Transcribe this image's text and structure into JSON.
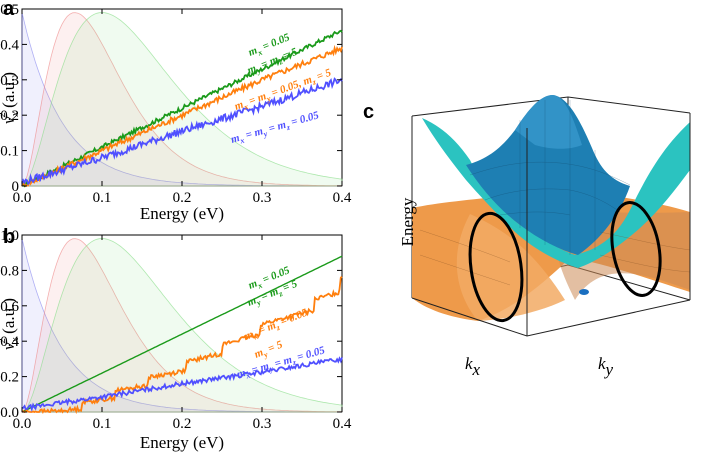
{
  "colors": {
    "green": "#1a9a1a",
    "orange": "#ff7f0e",
    "blue": "#5050ff",
    "bg_blue": "#8888ee",
    "bg_red": "#ee8888",
    "bg_green": "#88dd88",
    "surface_top": "#1e7fb3",
    "surface_top_edge": "#2ad2c4",
    "surface_bottom": "#ee9a4a"
  },
  "chart_data": [
    {
      "panel": "a",
      "type": "line",
      "xlabel": "Energy (eV)",
      "ylabel": "v_x^2 (a.u.)",
      "ylabel_main": "v",
      "ylabel_sub": "x",
      "ylabel_sup": "2",
      "ylabel_unit": " (a.u.)",
      "xlim": [
        0,
        0.4
      ],
      "ylim": [
        0,
        0.5
      ],
      "xticks": [
        "0.0",
        "0.1",
        "0.2",
        "0.3",
        "0.4"
      ],
      "yticks": [
        "0",
        "0.1",
        "0.2",
        "0.3",
        "0.4",
        "0.5"
      ],
      "background_distributions": [
        {
          "name": "blue",
          "peak_x": 0.0,
          "peak_y": 0.49,
          "color_key": "bg_blue"
        },
        {
          "name": "red",
          "peak_x": 0.066,
          "peak_y": 0.49,
          "color_key": "bg_red"
        },
        {
          "name": "green",
          "peak_x": 0.1,
          "peak_y": 0.49,
          "color_key": "bg_green"
        }
      ],
      "series": [
        {
          "name": "m_x = 0.05, m_y = m_z = 5",
          "color_key": "green",
          "noise": 0.006,
          "x": [
            0,
            0.1,
            0.2,
            0.3,
            0.4
          ],
          "y": [
            0,
            0.11,
            0.22,
            0.33,
            0.44
          ]
        },
        {
          "name": "m_x = m_y = 0.05, m_z = 5",
          "color_key": "orange",
          "noise": 0.008,
          "x": [
            0,
            0.1,
            0.2,
            0.3,
            0.4
          ],
          "y": [
            0,
            0.1,
            0.2,
            0.3,
            0.39
          ]
        },
        {
          "name": "m_x = m_y = m_z = 0.05",
          "color_key": "blue",
          "noise": 0.01,
          "x": [
            0,
            0.1,
            0.2,
            0.3,
            0.4
          ],
          "y": [
            0.01,
            0.08,
            0.155,
            0.225,
            0.3
          ]
        }
      ],
      "annotations": [
        {
          "text": "m_x = 0.05",
          "parts": [
            [
              "m",
              "x",
              " = 0.05"
            ]
          ],
          "color_key": "green",
          "angle": -22
        },
        {
          "text": "m_y = m_z = 5",
          "parts": [
            [
              "m",
              "y",
              " = "
            ],
            [
              "m",
              "z",
              " = 5"
            ]
          ],
          "color_key": "green",
          "angle": -22
        },
        {
          "text": "m_x = m_y = 0.05, m_z = 5",
          "parts": [
            [
              "m",
              "x",
              " = "
            ],
            [
              "m",
              "y",
              " = 0.05, "
            ],
            [
              "m",
              "z",
              " = 5"
            ]
          ],
          "color_key": "orange",
          "angle": -20
        },
        {
          "text": "m_x = m_y = m_z = 0.05",
          "parts": [
            [
              "m",
              "x",
              " = "
            ],
            [
              "m",
              "y",
              " = "
            ],
            [
              "m",
              "z",
              " = 0.05"
            ]
          ],
          "color_key": "blue",
          "angle": -16
        }
      ]
    },
    {
      "panel": "b",
      "type": "line",
      "xlabel": "Energy (eV)",
      "ylabel": "v_x^2 (a.u.)",
      "ylabel_main": "v",
      "ylabel_sub": "x",
      "ylabel_sup": "2",
      "ylabel_unit": " (a.u.)",
      "xlim": [
        0,
        0.4
      ],
      "ylim": [
        0,
        1.0
      ],
      "xticks": [
        "0.0",
        "0.1",
        "0.2",
        "0.3",
        "0.4"
      ],
      "yticks": [
        "0.0",
        "0.2",
        "0.4",
        "0.6",
        "0.8",
        "1.0"
      ],
      "background_distributions": [
        {
          "name": "blue",
          "peak_x": 0.0,
          "peak_y": 0.98,
          "color_key": "bg_blue"
        },
        {
          "name": "red",
          "peak_x": 0.066,
          "peak_y": 0.98,
          "color_key": "bg_red"
        },
        {
          "name": "green",
          "peak_x": 0.1,
          "peak_y": 0.98,
          "color_key": "bg_green"
        }
      ],
      "series": [
        {
          "name": "m_x = 0.05, m_y = m_z = 5",
          "color_key": "green",
          "noise": 0,
          "x": [
            0,
            0.1,
            0.2,
            0.3,
            0.4
          ],
          "y": [
            0,
            0.22,
            0.44,
            0.66,
            0.88
          ]
        },
        {
          "name": "m_x = m_z = 0.05, m_y = 5",
          "color_key": "orange",
          "noise": 0.012,
          "stepped": true,
          "x": [
            0,
            0.05,
            0.1,
            0.15,
            0.2,
            0.25,
            0.3,
            0.35,
            0.385,
            0.395,
            0.4
          ],
          "y": [
            0,
            0.02,
            0.09,
            0.18,
            0.27,
            0.38,
            0.5,
            0.6,
            0.68,
            0.7,
            0.79
          ]
        },
        {
          "name": "m_x = m_y = m_z = 0.05",
          "color_key": "blue",
          "noise": 0.012,
          "x": [
            0,
            0.1,
            0.2,
            0.3,
            0.4
          ],
          "y": [
            0.02,
            0.085,
            0.16,
            0.225,
            0.3
          ]
        }
      ],
      "annotations": [
        {
          "text": "m_x = 0.05",
          "parts": [
            [
              "m",
              "x",
              " = 0.05"
            ]
          ],
          "color_key": "green",
          "angle": -22
        },
        {
          "text": "m_y = m_z = 5",
          "parts": [
            [
              "m",
              "y",
              " = "
            ],
            [
              "m",
              "z",
              " = 5"
            ]
          ],
          "color_key": "green",
          "angle": -22
        },
        {
          "text": "m_x = m_z = 0.05",
          "parts": [
            [
              "m",
              "x",
              " = "
            ],
            [
              "m",
              "z",
              " = 0.05"
            ]
          ],
          "color_key": "orange",
          "angle": -22
        },
        {
          "text": "m_y = 5",
          "parts": [
            [
              "m",
              "y",
              " = 5"
            ]
          ],
          "color_key": "orange",
          "angle": -22
        },
        {
          "text": "m_x = m_y = m_z = 0.05",
          "parts": [
            [
              "m",
              "x",
              " = "
            ],
            [
              "m",
              "y",
              " = "
            ],
            [
              "m",
              "z",
              " = 0.05"
            ]
          ],
          "color_key": "blue",
          "angle": -16
        }
      ]
    },
    {
      "panel": "c",
      "type": "3d-surface",
      "axis_label_vertical": "Energy",
      "axis_label_x_main": "k",
      "axis_label_x_sub": "x",
      "axis_label_y_main": "k",
      "axis_label_y_sub": "y",
      "surfaces": [
        "upper band (cyan-blue)",
        "lower band (orange)"
      ],
      "highlighted_regions": 2
    }
  ]
}
